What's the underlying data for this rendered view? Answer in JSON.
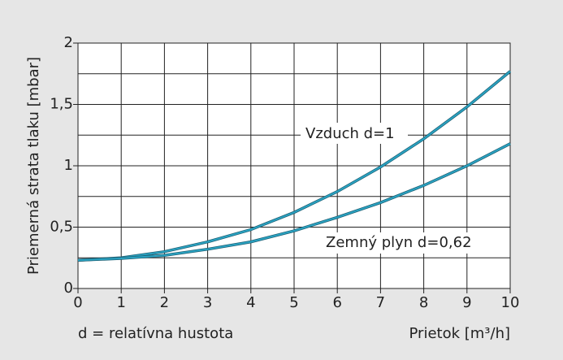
{
  "chart_data": {
    "type": "line",
    "xlabel": "Prietok [m³/h]",
    "ylabel": "Priemerná strata tlaku [mbar]",
    "annotations": [
      "Vzduch d=1",
      "Zemný plyn d=0,62",
      "d = relatívna hustota"
    ],
    "x": [
      0,
      1,
      2,
      3,
      4,
      5,
      6,
      7,
      8,
      9,
      10
    ],
    "series": [
      {
        "name": "Vzduch d=1",
        "color": "#2aa3c2",
        "values": [
          0.23,
          0.25,
          0.3,
          0.38,
          0.48,
          0.62,
          0.79,
          0.99,
          1.22,
          1.48,
          1.77
        ]
      },
      {
        "name": "Zemný plyn d=0,62",
        "color": "#2aa3c2",
        "values": [
          0.23,
          0.245,
          0.27,
          0.32,
          0.38,
          0.47,
          0.58,
          0.7,
          0.84,
          1.0,
          1.18
        ]
      }
    ],
    "xlim": [
      0,
      10
    ],
    "xticks": [
      0,
      1,
      2,
      3,
      4,
      5,
      6,
      7,
      8,
      9,
      10
    ],
    "ylim": [
      0,
      2
    ],
    "yticks": [
      0,
      {
        "value": 0.5,
        "label": "0,5"
      },
      1,
      {
        "value": 1.5,
        "label": "1,5"
      },
      2
    ],
    "yminorticks": [
      0.25,
      0.75,
      1.25,
      1.75
    ],
    "grid": true
  }
}
